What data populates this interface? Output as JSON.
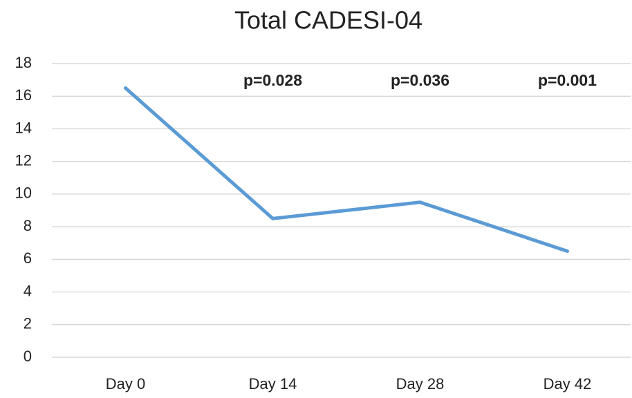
{
  "chart_data": {
    "type": "line",
    "title": "Total CADESI-04",
    "categories": [
      "Day 0",
      "Day 14",
      "Day 28",
      "Day 42"
    ],
    "series": [
      {
        "name": "Total CADESI-04",
        "color": "#5b9bd5",
        "values": [
          16.5,
          8.5,
          9.5,
          6.5
        ]
      }
    ],
    "annotations": [
      {
        "text": "p=0.028",
        "category": "Day 14"
      },
      {
        "text": "p=0.036",
        "category": "Day 28"
      },
      {
        "text": "p=0.001",
        "category": "Day 42"
      }
    ],
    "ylim": [
      0,
      18
    ],
    "yticks": [
      0,
      2,
      4,
      6,
      8,
      10,
      12,
      14,
      16,
      18
    ],
    "grid": true,
    "legend": false
  }
}
